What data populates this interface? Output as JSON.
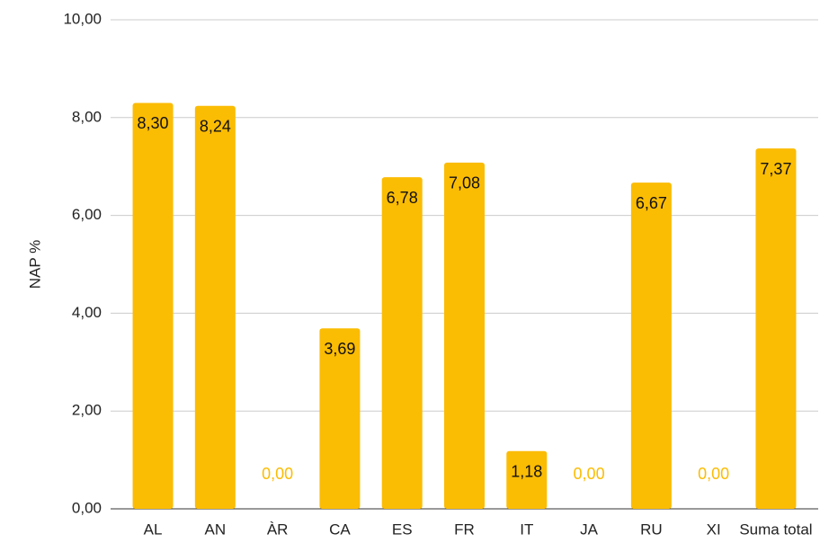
{
  "chart_data": {
    "type": "bar",
    "y_label": "NAP %",
    "categories": [
      "AL",
      "AN",
      "ÀR",
      "CA",
      "ES",
      "FR",
      "IT",
      "JA",
      "RU",
      "XI",
      "Suma total"
    ],
    "values": [
      8.3,
      8.24,
      0.0,
      3.69,
      6.78,
      7.08,
      1.18,
      0.0,
      6.67,
      0.0,
      7.37
    ],
    "value_labels": [
      "8,30",
      "8,24",
      "0,00",
      "3,69",
      "6,78",
      "7,08",
      "1,18",
      "0,00",
      "6,67",
      "0,00",
      "7,37"
    ],
    "color": "#fbbc04",
    "ylim": [
      0,
      10
    ],
    "yticks": [
      {
        "value": 0,
        "label": "0,00"
      },
      {
        "value": 2,
        "label": "2,00"
      },
      {
        "value": 4,
        "label": "4,00"
      },
      {
        "value": 6,
        "label": "6,00"
      },
      {
        "value": 8,
        "label": "8,00"
      },
      {
        "value": 10,
        "label": "10,00"
      }
    ],
    "grid": true
  }
}
